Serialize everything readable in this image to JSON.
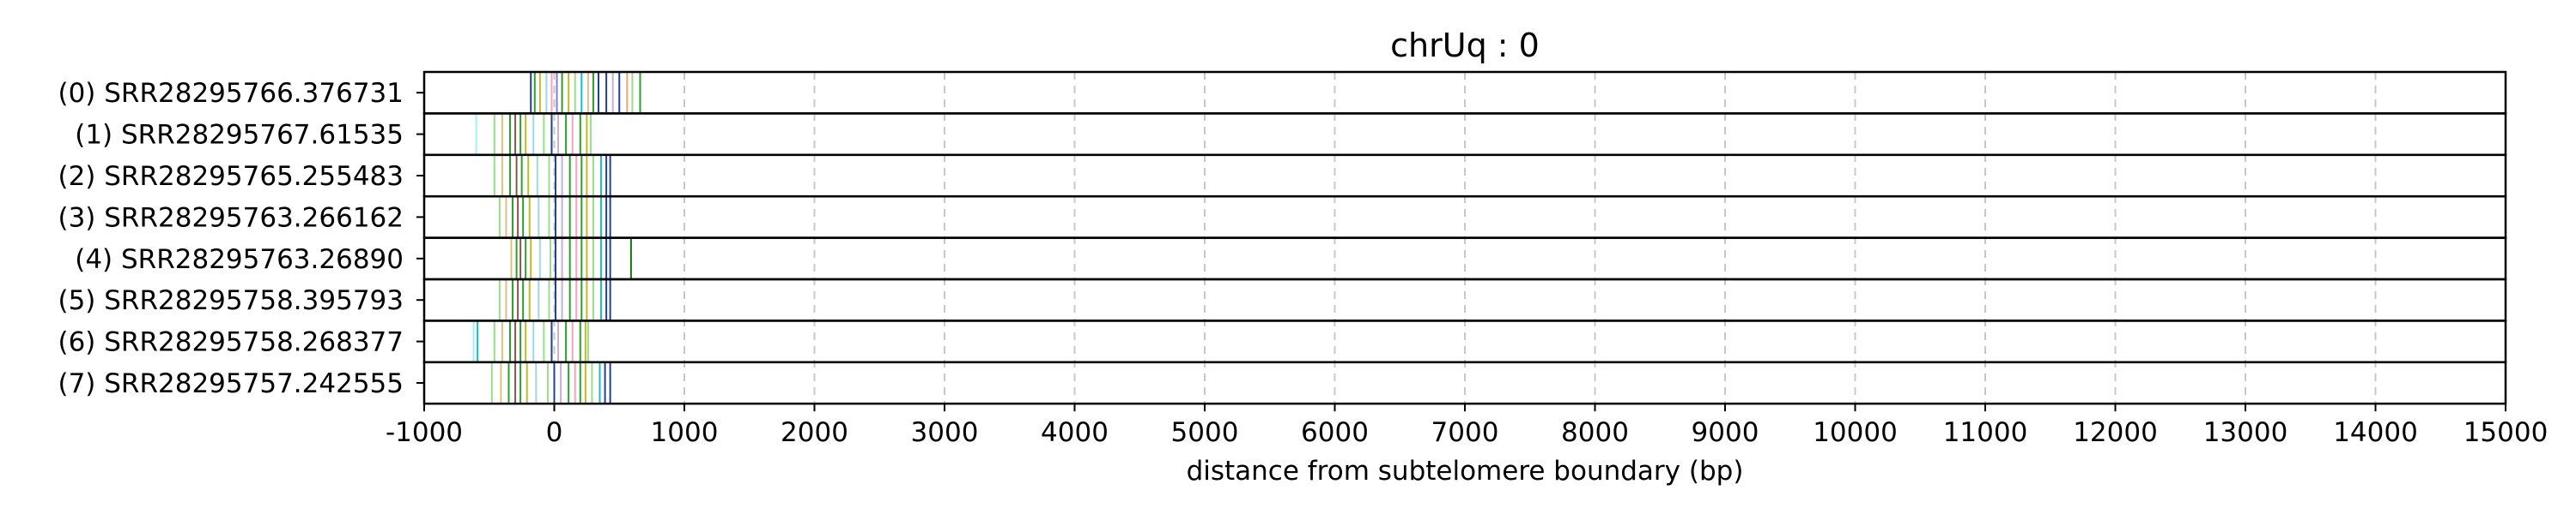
{
  "chart_data": {
    "type": "scatter",
    "title": "chrUq : 0",
    "xlabel": "distance from subtelomere boundary (bp)",
    "ylabel": "",
    "xlim": [
      -1000,
      15000
    ],
    "x_ticks": [
      "-1000",
      "0",
      "1000",
      "2000",
      "3000",
      "4000",
      "5000",
      "6000",
      "7000",
      "8000",
      "9000",
      "10000",
      "11000",
      "12000",
      "13000",
      "14000",
      "15000"
    ],
    "grid": "vertical dashed",
    "reads": [
      {
        "label": "(0) SRR28295766.376731",
        "marks": [
          {
            "x": -180,
            "color": "#1f3f9f"
          },
          {
            "x": -150,
            "color": "#2ca02c"
          },
          {
            "x": -110,
            "color": "#bcbd22"
          },
          {
            "x": -60,
            "color": "#9fd8e8"
          },
          {
            "x": -20,
            "color": "#ff9fc0"
          },
          {
            "x": 20,
            "color": "#7f7fdf"
          },
          {
            "x": 60,
            "color": "#2ca02c"
          },
          {
            "x": 110,
            "color": "#bcbd22"
          },
          {
            "x": 160,
            "color": "#98df8a"
          },
          {
            "x": 210,
            "color": "#17becf"
          },
          {
            "x": 260,
            "color": "#e0c080"
          },
          {
            "x": 300,
            "color": "#2ca02c"
          },
          {
            "x": 340,
            "color": "#1f3f9f"
          },
          {
            "x": 400,
            "color": "#1f3f9f"
          },
          {
            "x": 450,
            "color": "#c5b0d5"
          },
          {
            "x": 500,
            "color": "#1f3f9f"
          },
          {
            "x": 560,
            "color": "#ff9f6f"
          },
          {
            "x": 600,
            "color": "#98df8a"
          },
          {
            "x": 660,
            "color": "#2ca02c"
          }
        ]
      },
      {
        "label": "(1) SRR28295767.61535",
        "marks": [
          {
            "x": -600,
            "color": "#9fefff"
          },
          {
            "x": -460,
            "color": "#98df8a"
          },
          {
            "x": -400,
            "color": "#e0c080"
          },
          {
            "x": -340,
            "color": "#2ca02c"
          },
          {
            "x": -300,
            "color": "#8c564b"
          },
          {
            "x": -260,
            "color": "#2ca02c"
          },
          {
            "x": -220,
            "color": "#bcbd22"
          },
          {
            "x": -160,
            "color": "#9fd8e8"
          },
          {
            "x": -80,
            "color": "#98df8a"
          },
          {
            "x": -20,
            "color": "#1f3f9f"
          },
          {
            "x": 30,
            "color": "#c5b0d5"
          },
          {
            "x": 90,
            "color": "#2ca02c"
          },
          {
            "x": 140,
            "color": "#ff9fc0"
          },
          {
            "x": 200,
            "color": "#2ca02c"
          },
          {
            "x": 250,
            "color": "#bcbd22"
          },
          {
            "x": 280,
            "color": "#98df8a"
          }
        ]
      },
      {
        "label": "(2) SRR28295765.255483",
        "marks": [
          {
            "x": -460,
            "color": "#98df8a"
          },
          {
            "x": -400,
            "color": "#e0c080"
          },
          {
            "x": -340,
            "color": "#2ca02c"
          },
          {
            "x": -290,
            "color": "#8c564b"
          },
          {
            "x": -250,
            "color": "#2ca02c"
          },
          {
            "x": -200,
            "color": "#bcbd22"
          },
          {
            "x": -130,
            "color": "#9fd8e8"
          },
          {
            "x": -40,
            "color": "#98df8a"
          },
          {
            "x": 10,
            "color": "#1f3f9f"
          },
          {
            "x": 60,
            "color": "#c5b0d5"
          },
          {
            "x": 120,
            "color": "#2ca02c"
          },
          {
            "x": 170,
            "color": "#ff9fc0"
          },
          {
            "x": 210,
            "color": "#2ca02c"
          },
          {
            "x": 250,
            "color": "#bcbd22"
          },
          {
            "x": 300,
            "color": "#98df8a"
          },
          {
            "x": 360,
            "color": "#17becf"
          },
          {
            "x": 400,
            "color": "#1f3f9f"
          },
          {
            "x": 430,
            "color": "#1f3f9f"
          }
        ]
      },
      {
        "label": "(3) SRR28295763.266162",
        "marks": [
          {
            "x": -420,
            "color": "#98df8a"
          },
          {
            "x": -370,
            "color": "#e0c080"
          },
          {
            "x": -320,
            "color": "#2ca02c"
          },
          {
            "x": -280,
            "color": "#8c564b"
          },
          {
            "x": -240,
            "color": "#2ca02c"
          },
          {
            "x": -190,
            "color": "#bcbd22"
          },
          {
            "x": -120,
            "color": "#9fd8e8"
          },
          {
            "x": -40,
            "color": "#98df8a"
          },
          {
            "x": 10,
            "color": "#1f3f9f"
          },
          {
            "x": 60,
            "color": "#c5b0d5"
          },
          {
            "x": 120,
            "color": "#2ca02c"
          },
          {
            "x": 170,
            "color": "#ff9fc0"
          },
          {
            "x": 210,
            "color": "#2ca02c"
          },
          {
            "x": 250,
            "color": "#bcbd22"
          },
          {
            "x": 300,
            "color": "#98df8a"
          },
          {
            "x": 360,
            "color": "#17becf"
          },
          {
            "x": 400,
            "color": "#1f3f9f"
          },
          {
            "x": 430,
            "color": "#1f3f9f"
          }
        ]
      },
      {
        "label": "(4) SRR28295763.26890",
        "marks": [
          {
            "x": -330,
            "color": "#e0c080"
          },
          {
            "x": -290,
            "color": "#2ca02c"
          },
          {
            "x": -260,
            "color": "#8c564b"
          },
          {
            "x": -220,
            "color": "#2ca02c"
          },
          {
            "x": -180,
            "color": "#bcbd22"
          },
          {
            "x": -110,
            "color": "#9fd8e8"
          },
          {
            "x": -30,
            "color": "#98df8a"
          },
          {
            "x": 10,
            "color": "#1f3f9f"
          },
          {
            "x": 60,
            "color": "#c5b0d5"
          },
          {
            "x": 120,
            "color": "#2ca02c"
          },
          {
            "x": 170,
            "color": "#ff9fc0"
          },
          {
            "x": 210,
            "color": "#2ca02c"
          },
          {
            "x": 250,
            "color": "#bcbd22"
          },
          {
            "x": 300,
            "color": "#98df8a"
          },
          {
            "x": 360,
            "color": "#17becf"
          },
          {
            "x": 400,
            "color": "#1f3f9f"
          },
          {
            "x": 430,
            "color": "#1f3f9f"
          },
          {
            "x": 590,
            "color": "#0a7a0a"
          }
        ]
      },
      {
        "label": "(5) SRR28295758.395793",
        "marks": [
          {
            "x": -420,
            "color": "#98df8a"
          },
          {
            "x": -370,
            "color": "#e0c080"
          },
          {
            "x": -320,
            "color": "#2ca02c"
          },
          {
            "x": -280,
            "color": "#8c564b"
          },
          {
            "x": -240,
            "color": "#2ca02c"
          },
          {
            "x": -190,
            "color": "#bcbd22"
          },
          {
            "x": -120,
            "color": "#9fd8e8"
          },
          {
            "x": -40,
            "color": "#98df8a"
          },
          {
            "x": 10,
            "color": "#1f3f9f"
          },
          {
            "x": 60,
            "color": "#c5b0d5"
          },
          {
            "x": 120,
            "color": "#2ca02c"
          },
          {
            "x": 170,
            "color": "#ff9fc0"
          },
          {
            "x": 210,
            "color": "#2ca02c"
          },
          {
            "x": 250,
            "color": "#bcbd22"
          },
          {
            "x": 300,
            "color": "#98df8a"
          },
          {
            "x": 360,
            "color": "#17becf"
          },
          {
            "x": 400,
            "color": "#1f3f9f"
          },
          {
            "x": 430,
            "color": "#1f3f9f"
          }
        ]
      },
      {
        "label": "(6) SRR28295758.268377",
        "marks": [
          {
            "x": -620,
            "color": "#9fefff"
          },
          {
            "x": -590,
            "color": "#17becf"
          },
          {
            "x": -460,
            "color": "#98df8a"
          },
          {
            "x": -400,
            "color": "#e0c080"
          },
          {
            "x": -340,
            "color": "#2ca02c"
          },
          {
            "x": -300,
            "color": "#8c564b"
          },
          {
            "x": -260,
            "color": "#2ca02c"
          },
          {
            "x": -220,
            "color": "#bcbd22"
          },
          {
            "x": -160,
            "color": "#9fd8e8"
          },
          {
            "x": -80,
            "color": "#98df8a"
          },
          {
            "x": -20,
            "color": "#1f3f9f"
          },
          {
            "x": 30,
            "color": "#c5b0d5"
          },
          {
            "x": 90,
            "color": "#2ca02c"
          },
          {
            "x": 140,
            "color": "#ff9fc0"
          },
          {
            "x": 200,
            "color": "#2ca02c"
          },
          {
            "x": 240,
            "color": "#bcbd22"
          },
          {
            "x": 260,
            "color": "#98df8a"
          }
        ]
      },
      {
        "label": "(7) SRR28295757.242555",
        "marks": [
          {
            "x": -480,
            "color": "#98df8a"
          },
          {
            "x": -410,
            "color": "#e0c080"
          },
          {
            "x": -350,
            "color": "#2ca02c"
          },
          {
            "x": -300,
            "color": "#8c564b"
          },
          {
            "x": -260,
            "color": "#2ca02c"
          },
          {
            "x": -210,
            "color": "#bcbd22"
          },
          {
            "x": -140,
            "color": "#9fd8e8"
          },
          {
            "x": -50,
            "color": "#98df8a"
          },
          {
            "x": 0,
            "color": "#1f3f9f"
          },
          {
            "x": 50,
            "color": "#c5b0d5"
          },
          {
            "x": 110,
            "color": "#2ca02c"
          },
          {
            "x": 160,
            "color": "#ff9fc0"
          },
          {
            "x": 200,
            "color": "#2ca02c"
          },
          {
            "x": 240,
            "color": "#bcbd22"
          },
          {
            "x": 290,
            "color": "#98df8a"
          },
          {
            "x": 350,
            "color": "#17becf"
          },
          {
            "x": 390,
            "color": "#1f3f9f"
          },
          {
            "x": 430,
            "color": "#1f3f9f"
          }
        ]
      }
    ]
  }
}
